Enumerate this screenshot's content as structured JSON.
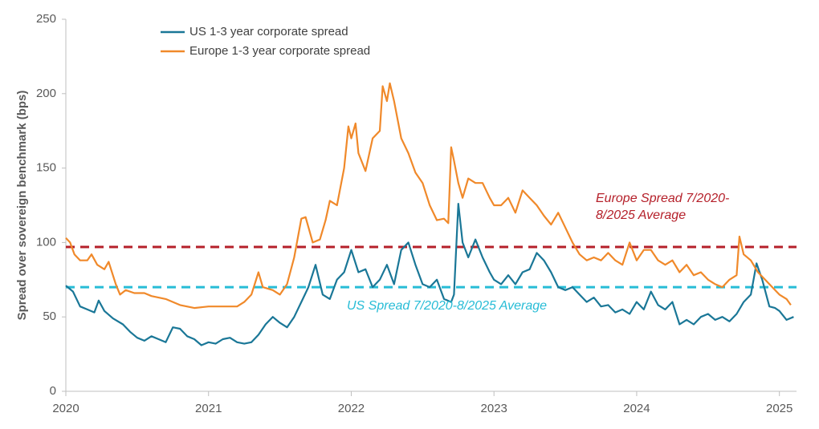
{
  "chart_data": {
    "type": "line",
    "y_label": "Spread over sovereign benchmark (bps)",
    "xlim": [
      2020,
      2025.12
    ],
    "xticks": [
      2020,
      2021,
      2022,
      2023,
      2024,
      2025
    ],
    "ylim": [
      0,
      250
    ],
    "yticks": [
      0,
      50,
      100,
      150,
      200,
      250
    ],
    "grid": false,
    "legend": "top-left",
    "series": [
      {
        "name": "US 1-3 year corporate spread",
        "color": "#1a7797",
        "x": [
          2020.0,
          2020.05,
          2020.1,
          2020.15,
          2020.2,
          2020.23,
          2020.27,
          2020.33,
          2020.4,
          2020.45,
          2020.5,
          2020.55,
          2020.6,
          2020.65,
          2020.7,
          2020.75,
          2020.8,
          2020.85,
          2020.9,
          2020.95,
          2021.0,
          2021.05,
          2021.1,
          2021.15,
          2021.2,
          2021.25,
          2021.3,
          2021.35,
          2021.4,
          2021.45,
          2021.5,
          2021.55,
          2021.6,
          2021.65,
          2021.7,
          2021.75,
          2021.8,
          2021.85,
          2021.9,
          2021.95,
          2022.0,
          2022.05,
          2022.1,
          2022.15,
          2022.2,
          2022.25,
          2022.3,
          2022.35,
          2022.4,
          2022.45,
          2022.5,
          2022.55,
          2022.6,
          2022.65,
          2022.7,
          2022.72,
          2022.75,
          2022.78,
          2022.82,
          2022.87,
          2022.92,
          2022.97,
          2023.0,
          2023.05,
          2023.1,
          2023.15,
          2023.2,
          2023.25,
          2023.3,
          2023.35,
          2023.4,
          2023.45,
          2023.5,
          2023.55,
          2023.6,
          2023.65,
          2023.7,
          2023.75,
          2023.8,
          2023.85,
          2023.9,
          2023.95,
          2024.0,
          2024.05,
          2024.1,
          2024.15,
          2024.2,
          2024.25,
          2024.3,
          2024.35,
          2024.4,
          2024.45,
          2024.5,
          2024.55,
          2024.6,
          2024.65,
          2024.7,
          2024.75,
          2024.8,
          2024.84,
          2024.88,
          2024.93,
          2024.97,
          2025.0,
          2025.05,
          2025.1
        ],
        "values": [
          71,
          67,
          57,
          55,
          53,
          61,
          54,
          49,
          45,
          40,
          36,
          34,
          37,
          35,
          33,
          43,
          42,
          37,
          35,
          31,
          33,
          32,
          35,
          36,
          33,
          32,
          33,
          38,
          45,
          50,
          46,
          43,
          50,
          60,
          70,
          85,
          65,
          62,
          75,
          80,
          95,
          80,
          82,
          70,
          75,
          85,
          72,
          95,
          100,
          85,
          72,
          70,
          75,
          62,
          60,
          65,
          126,
          100,
          90,
          102,
          90,
          80,
          75,
          72,
          78,
          72,
          80,
          82,
          93,
          88,
          80,
          70,
          68,
          70,
          65,
          60,
          63,
          57,
          58,
          53,
          55,
          52,
          60,
          55,
          67,
          58,
          55,
          60,
          45,
          48,
          45,
          50,
          52,
          48,
          50,
          47,
          52,
          60,
          65,
          86,
          75,
          57,
          56,
          54,
          48,
          50
        ]
      },
      {
        "name": "Europe 1-3 year corporate spread",
        "color": "#f0892a",
        "x": [
          2020.0,
          2020.03,
          2020.06,
          2020.1,
          2020.15,
          2020.18,
          2020.22,
          2020.27,
          2020.3,
          2020.35,
          2020.38,
          2020.42,
          2020.48,
          2020.55,
          2020.6,
          2020.65,
          2020.7,
          2020.75,
          2020.8,
          2020.9,
          2021.0,
          2021.1,
          2021.2,
          2021.25,
          2021.3,
          2021.35,
          2021.38,
          2021.45,
          2021.5,
          2021.55,
          2021.6,
          2021.65,
          2021.68,
          2021.73,
          2021.78,
          2021.82,
          2021.85,
          2021.9,
          2021.95,
          2021.98,
          2022.0,
          2022.03,
          2022.05,
          2022.1,
          2022.15,
          2022.2,
          2022.22,
          2022.25,
          2022.27,
          2022.3,
          2022.35,
          2022.4,
          2022.45,
          2022.5,
          2022.55,
          2022.6,
          2022.65,
          2022.68,
          2022.7,
          2022.72,
          2022.75,
          2022.78,
          2022.82,
          2022.87,
          2022.92,
          2022.97,
          2023.0,
          2023.05,
          2023.1,
          2023.15,
          2023.2,
          2023.25,
          2023.3,
          2023.35,
          2023.4,
          2023.45,
          2023.5,
          2023.55,
          2023.6,
          2023.65,
          2023.7,
          2023.75,
          2023.8,
          2023.85,
          2023.9,
          2023.95,
          2024.0,
          2024.05,
          2024.1,
          2024.15,
          2024.2,
          2024.25,
          2024.3,
          2024.35,
          2024.4,
          2024.45,
          2024.5,
          2024.55,
          2024.6,
          2024.65,
          2024.7,
          2024.72,
          2024.75,
          2024.8,
          2024.85,
          2024.9,
          2024.95,
          2025.0,
          2025.05,
          2025.08
        ],
        "values": [
          103,
          100,
          92,
          88,
          88,
          92,
          85,
          82,
          87,
          72,
          65,
          68,
          66,
          66,
          64,
          63,
          62,
          60,
          58,
          56,
          57,
          57,
          57,
          60,
          65,
          80,
          70,
          68,
          65,
          72,
          90,
          116,
          117,
          100,
          102,
          115,
          128,
          125,
          150,
          178,
          170,
          180,
          160,
          148,
          170,
          175,
          205,
          195,
          207,
          195,
          170,
          160,
          147,
          140,
          125,
          115,
          116,
          113,
          164,
          155,
          140,
          130,
          143,
          140,
          140,
          130,
          125,
          125,
          130,
          120,
          135,
          130,
          125,
          118,
          112,
          120,
          110,
          100,
          92,
          88,
          90,
          88,
          93,
          88,
          85,
          100,
          88,
          95,
          95,
          88,
          85,
          88,
          80,
          85,
          78,
          80,
          75,
          72,
          70,
          75,
          78,
          104,
          92,
          88,
          80,
          75,
          70,
          65,
          62,
          58
        ]
      }
    ],
    "reference_lines": [
      {
        "label_lines": [
          "Europe Spread 7/2020-",
          "8/2025 Average"
        ],
        "value": 97,
        "color": "#b5202a"
      },
      {
        "label_lines": [
          "US Spread 7/2020-8/2025 Average"
        ],
        "value": 70,
        "color": "#27bcd6"
      }
    ]
  }
}
